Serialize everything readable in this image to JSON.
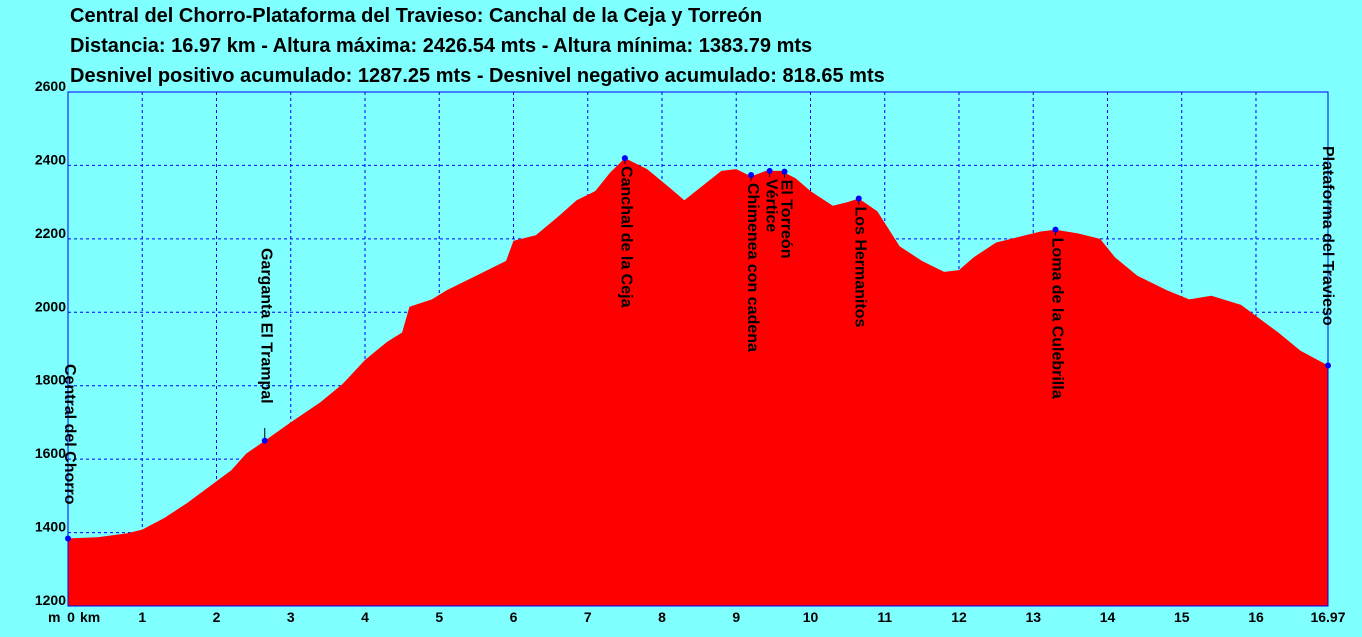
{
  "title_lines": [
    "Central del Chorro-Plataforma del Travieso:  Canchal de la Ceja y Torreón",
    "Distancia: 16.97 km - Altura máxima: 2426.54 mts - Altura mínima: 1383.79 mts",
    "Desnivel positivo acumulado: 1287.25 mts - Desnivel negativo acumulado: 818.65 mts"
  ],
  "colors": {
    "background": "#80FFFF",
    "fill": "#FF0000",
    "grid": "#0000FF",
    "marker": "#0000FF",
    "text": "#000000"
  },
  "chart_data": {
    "type": "area",
    "title": "Central del Chorro-Plataforma del Travieso:  Canchal de la Ceja y Torreón",
    "xlabel": "",
    "ylabel": "",
    "x_unit_label": "km",
    "y_unit_label": "m",
    "xlim": [
      0,
      16.97
    ],
    "ylim": [
      1200,
      2600
    ],
    "grid": true,
    "x_ticks": [
      "0",
      "1",
      "2",
      "3",
      "4",
      "5",
      "6",
      "7",
      "8",
      "9",
      "10",
      "11",
      "12",
      "13",
      "14",
      "15",
      "16",
      "16.97"
    ],
    "x_tick_values": [
      0,
      1,
      2,
      3,
      4,
      5,
      6,
      7,
      8,
      9,
      10,
      11,
      12,
      13,
      14,
      15,
      16,
      16.97
    ],
    "y_ticks": [
      "1200",
      "1400",
      "1600",
      "1800",
      "2000",
      "2200",
      "2400",
      "2600"
    ],
    "y_tick_values": [
      1200,
      1400,
      1600,
      1800,
      2000,
      2200,
      2400,
      2600
    ],
    "series": [
      {
        "x": [
          0,
          0.4,
          0.8,
          1.0,
          1.3,
          1.6,
          1.9,
          2.2,
          2.4,
          2.65,
          3.0,
          3.4,
          3.7,
          4.0,
          4.3,
          4.5,
          4.6,
          4.9,
          5.1,
          5.5,
          5.9,
          6.0,
          6.3,
          6.6,
          6.85,
          7.1,
          7.3,
          7.5,
          7.8,
          8.1,
          8.3,
          8.55,
          8.8,
          9.0,
          9.2,
          9.4,
          9.6,
          9.8,
          10.0,
          10.3,
          10.5,
          10.65,
          10.9,
          11.2,
          11.5,
          11.8,
          12.0,
          12.2,
          12.5,
          12.8,
          13.1,
          13.3,
          13.6,
          13.9,
          14.1,
          14.4,
          14.8,
          15.1,
          15.4,
          15.8,
          16.0,
          16.3,
          16.6,
          16.97
        ],
        "y": [
          1384,
          1387,
          1398,
          1408,
          1440,
          1480,
          1525,
          1570,
          1615,
          1650,
          1700,
          1755,
          1805,
          1870,
          1920,
          1945,
          2015,
          2035,
          2060,
          2100,
          2140,
          2195,
          2210,
          2260,
          2305,
          2330,
          2380,
          2420,
          2390,
          2340,
          2305,
          2345,
          2385,
          2390,
          2370,
          2385,
          2385,
          2365,
          2330,
          2290,
          2300,
          2310,
          2275,
          2180,
          2140,
          2110,
          2115,
          2150,
          2190,
          2205,
          2220,
          2225,
          2215,
          2200,
          2150,
          2100,
          2060,
          2035,
          2045,
          2020,
          1990,
          1945,
          1895,
          1855
        ]
      }
    ],
    "waypoints": [
      {
        "label": "Central del Chorro",
        "x": 0.0,
        "y": 1384
      },
      {
        "label": "Garganta El Trampal",
        "x": 2.65,
        "y": 1650
      },
      {
        "label": "Canchal de la Ceja",
        "x": 7.5,
        "y": 2420
      },
      {
        "label": "Chimenea con cadena",
        "x": 9.2,
        "y": 2374
      },
      {
        "label": "Vértice",
        "x": 9.45,
        "y": 2385
      },
      {
        "label": "El Torreón",
        "x": 9.65,
        "y": 2383
      },
      {
        "label": "Los Hermanitos",
        "x": 10.65,
        "y": 2310
      },
      {
        "label": "Loma de la Culebrilla",
        "x": 13.3,
        "y": 2225
      },
      {
        "label": "Plataforma del Travieso",
        "x": 16.97,
        "y": 1855
      }
    ]
  }
}
